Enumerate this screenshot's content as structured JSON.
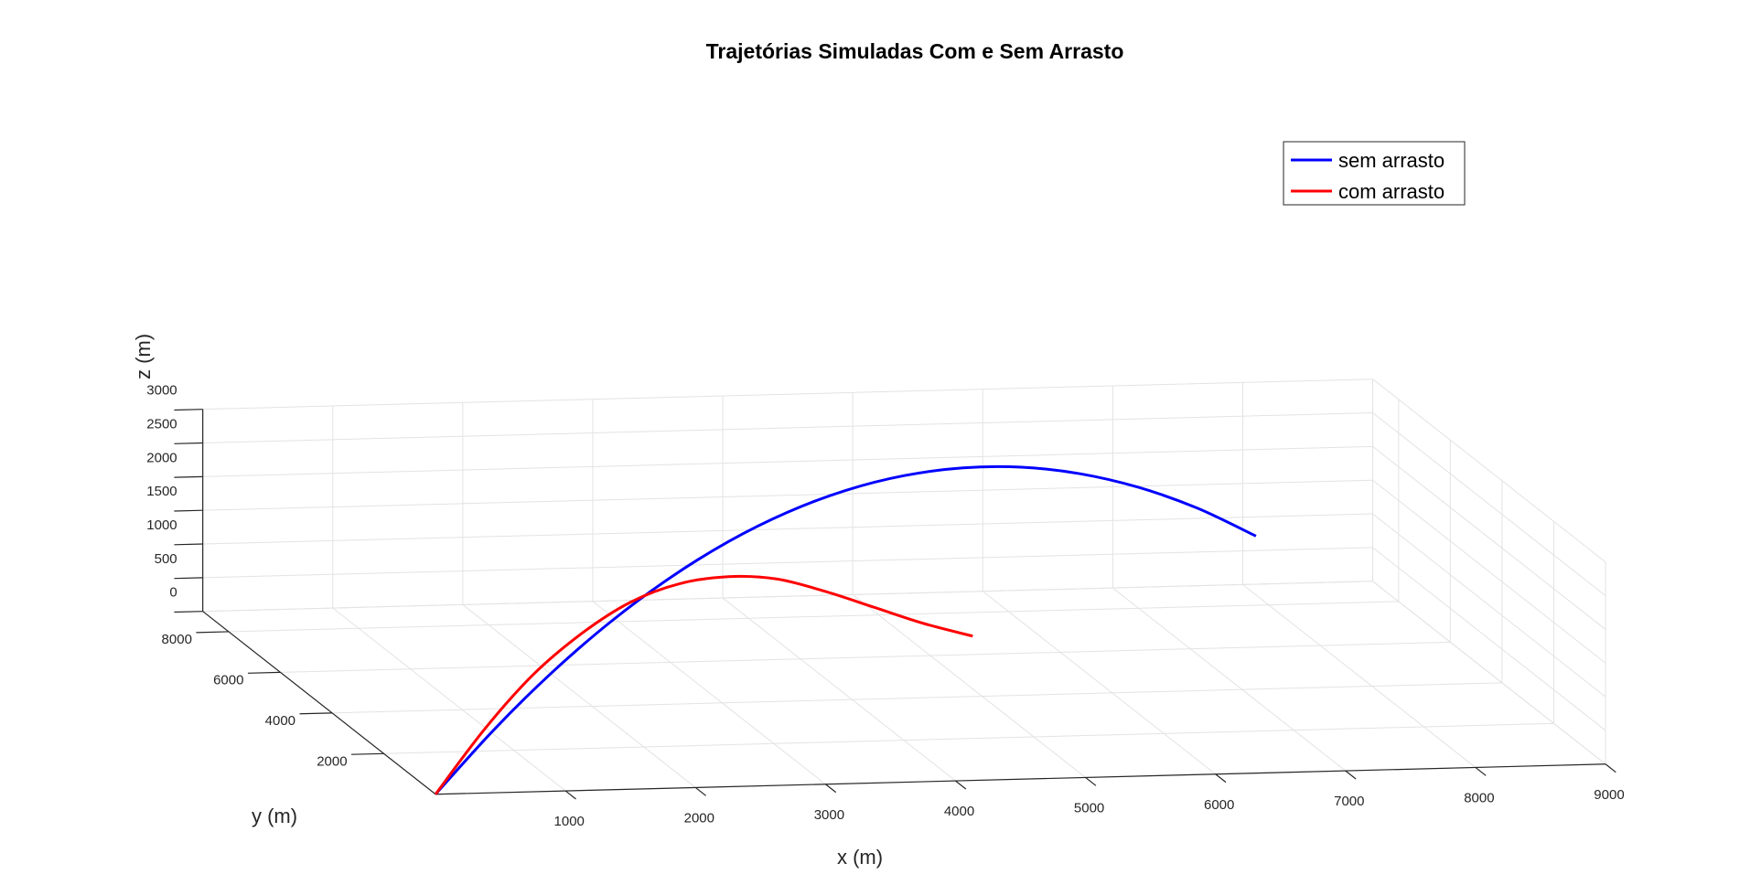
{
  "chart_data": {
    "type": "line",
    "title": "Trajetórias Simuladas Com e Sem Arrasto",
    "xlabel": "x (m)",
    "ylabel": "y (m)",
    "zlabel": "z (m)",
    "x_ticks": [
      "1000",
      "2000",
      "3000",
      "4000",
      "5000",
      "6000",
      "7000",
      "8000",
      "9000"
    ],
    "y_ticks": [
      "2000",
      "4000",
      "6000",
      "8000"
    ],
    "z_ticks": [
      "0",
      "500",
      "1000",
      "1500",
      "2000",
      "2500",
      "3000"
    ],
    "xlim": [
      0,
      9000
    ],
    "ylim": [
      0,
      9000
    ],
    "zlim": [
      0,
      3000
    ],
    "grid": true,
    "view": "3d",
    "legend_position": "top-right",
    "series": [
      {
        "name": "sem arrasto",
        "color": "#0000ff",
        "x": [
          0,
          600,
          1200,
          1800,
          2400,
          3000,
          3600,
          4200,
          4800,
          5400,
          6000,
          6600,
          7200,
          7800,
          8400
        ],
        "y": [
          0,
          750,
          1500,
          2250,
          3000,
          3750,
          4500,
          5250,
          6000,
          6750,
          7500,
          8250,
          9000,
          9750,
          10500
        ],
        "z": [
          0,
          706,
          1306,
          1800,
          2188,
          2471,
          2647,
          2718,
          2682,
          2541,
          2294,
          1941,
          1482,
          918,
          247
        ]
      },
      {
        "name": "com arrasto",
        "color": "#ff0000",
        "x": [
          0,
          500,
          1000,
          1500,
          2000,
          2500,
          3000,
          3500,
          4000,
          4500,
          5000,
          5500
        ],
        "y": [
          0,
          625,
          1250,
          1875,
          2500,
          3125,
          3750,
          4375,
          5000,
          5625,
          6250,
          6875
        ],
        "z": [
          0,
          750,
          1350,
          1750,
          2000,
          2060,
          1950,
          1700,
          1300,
          850,
          400,
          0
        ]
      }
    ]
  }
}
